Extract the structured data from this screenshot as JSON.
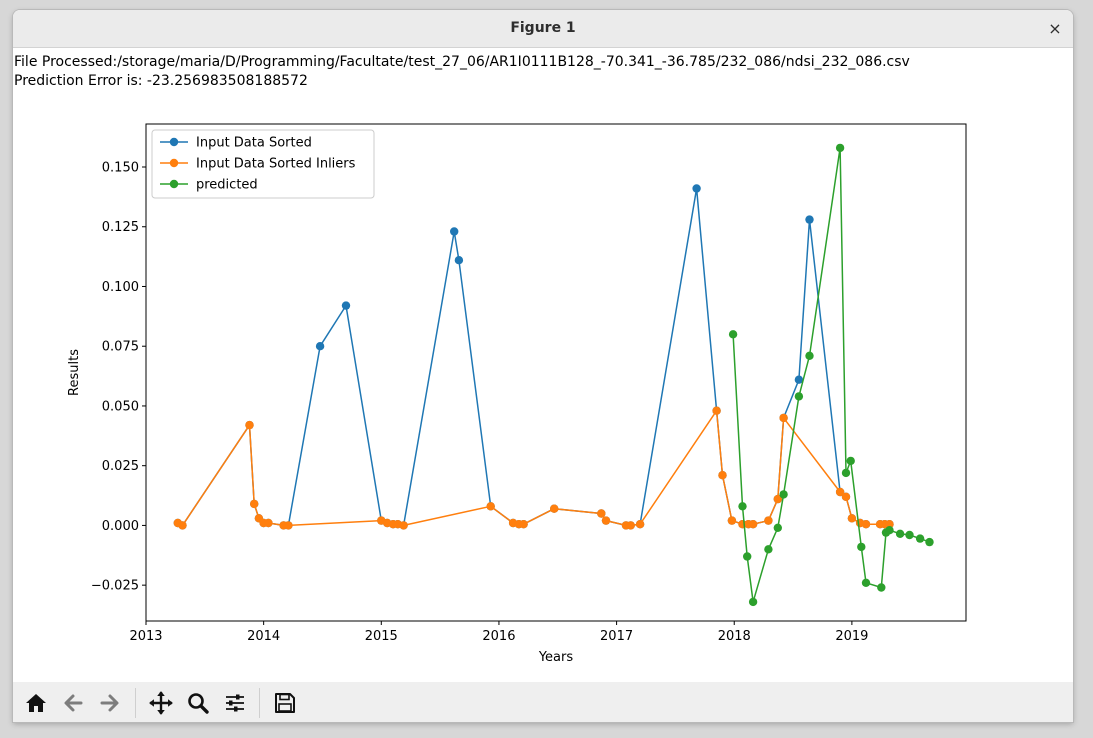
{
  "window": {
    "title": "Figure 1",
    "close_label": "×"
  },
  "info": {
    "file_line": "File Processed:/storage/maria/D/Programming/Facultate/test_27_06/AR1I0111B128_-70.341_-36.785/232_086/ndsi_232_086.csv",
    "error_line": "Prediction Error is: -23.256983508188572"
  },
  "toolbar": {
    "buttons": [
      "home-icon",
      "back-arrow-icon",
      "forward-arrow-icon",
      "pan-icon",
      "zoom-icon",
      "configure-subplots-icon",
      "save-icon"
    ]
  },
  "chart_data": {
    "type": "line",
    "xlabel": "Years",
    "ylabel": "Results",
    "xlim": [
      2013.0,
      2019.97
    ],
    "ylim": [
      -0.04,
      0.168
    ],
    "xticks": [
      2013,
      2014,
      2015,
      2016,
      2017,
      2018,
      2019
    ],
    "xtick_labels": [
      "2013",
      "2014",
      "2015",
      "2016",
      "2017",
      "2018",
      "2019"
    ],
    "yticks": [
      -0.025,
      0.0,
      0.025,
      0.05,
      0.075,
      0.1,
      0.125,
      0.15
    ],
    "ytick_labels": [
      "−0.025",
      "0.000",
      "0.025",
      "0.050",
      "0.075",
      "0.100",
      "0.125",
      "0.150"
    ],
    "legend_position": "top-left",
    "grid": false,
    "series": [
      {
        "name": "Input Data Sorted",
        "color": "#1f77b4",
        "x": [
          2013.27,
          2013.31,
          2013.88,
          2013.92,
          2013.96,
          2014.0,
          2014.04,
          2014.17,
          2014.21,
          2014.48,
          2014.7,
          2015.0,
          2015.05,
          2015.1,
          2015.14,
          2015.19,
          2015.62,
          2015.66,
          2015.93,
          2016.12,
          2016.17,
          2016.21,
          2016.47,
          2016.87,
          2016.91,
          2017.08,
          2017.12,
          2017.2,
          2017.68,
          2017.85,
          2017.9,
          2017.98,
          2018.07,
          2018.12,
          2018.16,
          2018.29,
          2018.37,
          2018.42,
          2018.55,
          2018.64,
          2018.9,
          2018.95,
          2019.0,
          2019.07,
          2019.12,
          2019.24,
          2019.28,
          2019.32
        ],
        "y": [
          0.001,
          0.0,
          0.042,
          0.009,
          0.003,
          0.001,
          0.001,
          0.0,
          0.0,
          0.075,
          0.092,
          0.002,
          0.001,
          0.0005,
          0.0005,
          0.0,
          0.123,
          0.111,
          0.008,
          0.001,
          0.0005,
          0.0005,
          0.007,
          0.005,
          0.002,
          0.0,
          0.0,
          0.0005,
          0.141,
          0.048,
          0.021,
          0.002,
          0.0005,
          0.0005,
          0.0005,
          0.002,
          0.011,
          0.045,
          0.061,
          0.128,
          0.014,
          0.012,
          0.003,
          0.001,
          0.0005,
          0.0005,
          0.0005,
          0.0005
        ]
      },
      {
        "name": "Input Data Sorted Inliers",
        "color": "#ff7f0e",
        "x": [
          2013.27,
          2013.31,
          2013.88,
          2013.92,
          2013.96,
          2014.0,
          2014.04,
          2014.17,
          2014.21,
          2015.0,
          2015.05,
          2015.1,
          2015.14,
          2015.19,
          2015.93,
          2016.12,
          2016.17,
          2016.21,
          2016.47,
          2016.87,
          2016.91,
          2017.08,
          2017.12,
          2017.2,
          2017.85,
          2017.9,
          2017.98,
          2018.07,
          2018.12,
          2018.16,
          2018.29,
          2018.37,
          2018.42,
          2018.9,
          2018.95,
          2019.0,
          2019.07,
          2019.12,
          2019.24,
          2019.28,
          2019.32
        ],
        "y": [
          0.001,
          0.0,
          0.042,
          0.009,
          0.003,
          0.001,
          0.001,
          0.0,
          0.0,
          0.002,
          0.001,
          0.0005,
          0.0005,
          0.0,
          0.008,
          0.001,
          0.0005,
          0.0005,
          0.007,
          0.005,
          0.002,
          0.0,
          0.0,
          0.0005,
          0.048,
          0.021,
          0.002,
          0.0005,
          0.0005,
          0.0005,
          0.002,
          0.011,
          0.045,
          0.014,
          0.012,
          0.003,
          0.001,
          0.0005,
          0.0005,
          0.0005,
          0.0005
        ]
      },
      {
        "name": "predicted",
        "color": "#2ca02c",
        "x": [
          2017.99,
          2018.07,
          2018.11,
          2018.16,
          2018.29,
          2018.37,
          2018.42,
          2018.55,
          2018.64,
          2018.9,
          2018.95,
          2018.99,
          2019.08,
          2019.12,
          2019.25,
          2019.29,
          2019.32,
          2019.41,
          2019.49,
          2019.58,
          2019.66
        ],
        "y": [
          0.08,
          0.008,
          -0.013,
          -0.032,
          -0.01,
          -0.001,
          0.013,
          0.054,
          0.071,
          0.158,
          0.022,
          0.027,
          -0.009,
          -0.024,
          -0.026,
          -0.003,
          -0.002,
          -0.0035,
          -0.004,
          -0.0055,
          -0.007
        ]
      }
    ]
  }
}
